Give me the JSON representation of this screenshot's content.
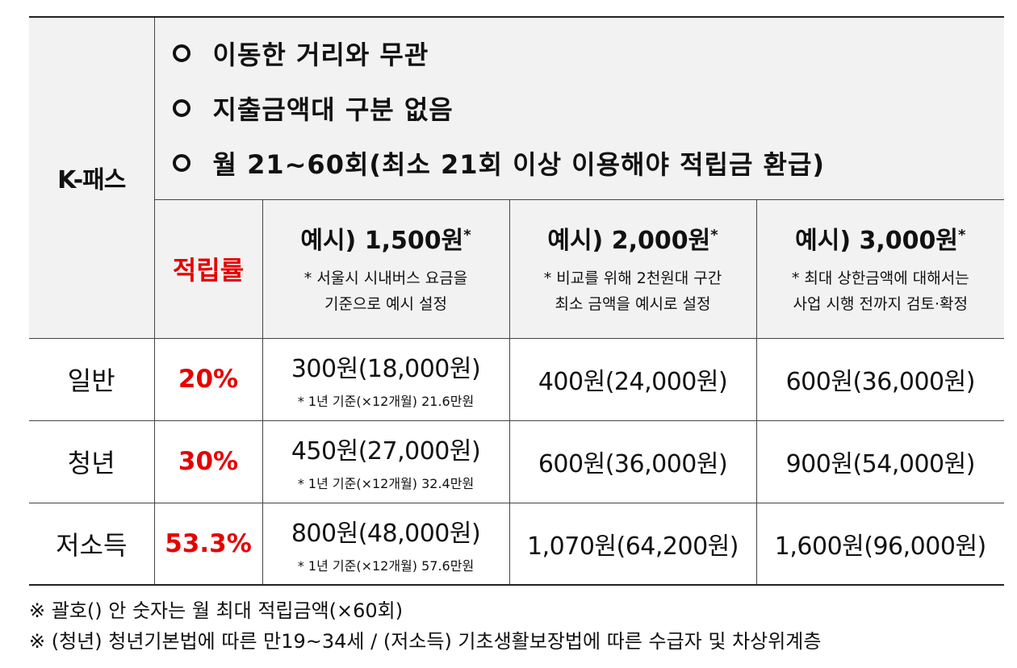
{
  "table": {
    "kpass_label": "K-패스",
    "features": [
      "이동한 거리와 무관",
      "지출금액대 구분 없음",
      "월 21~60회(최소 21회 이상 이용해야 적립금 환급)"
    ],
    "rate_header": "적립률",
    "examples": [
      {
        "title": "예시) 1,500원",
        "mark": "*",
        "note_line1": "* 서울시 시내버스 요금을",
        "note_line2": "기준으로 예시 설정"
      },
      {
        "title": "예시) 2,000원",
        "mark": "*",
        "note_line1": "* 비교를 위해 2천원대 구간",
        "note_line2": "최소 금액을 예시로 설정"
      },
      {
        "title": "예시) 3,000원",
        "mark": "*",
        "note_line1": "* 최대 상한금액에 대해서는",
        "note_line2": "사업 시행 전까지 검토·확정"
      }
    ],
    "rows": [
      {
        "category": "일반",
        "rate": "20%",
        "col1": "300원(18,000원)",
        "col1_note": "* 1년 기준(×12개월) 21.6만원",
        "col2": "400원(24,000원)",
        "col3": "600원(36,000원)"
      },
      {
        "category": "청년",
        "rate": "30%",
        "col1": "450원(27,000원)",
        "col1_note": "* 1년 기준(×12개월) 32.4만원",
        "col2": "600원(36,000원)",
        "col3": "900원(54,000원)"
      },
      {
        "category": "저소득",
        "rate": "53.3%",
        "col1": "800원(48,000원)",
        "col1_note": "* 1년 기준(×12개월) 57.6만원",
        "col2": "1,070원(64,200원)",
        "col3": "1,600원(96,000원)"
      }
    ]
  },
  "footnotes": [
    "※ 괄호() 안 숫자는 월 최대 적립금액(×60회)",
    "※ (청년) 청년기본법에 따른 만19~34세 / (저소득) 기초생활보장법에 따른 수급자 및 차상위계층"
  ],
  "colors": {
    "accent_red": "#e60000",
    "header_shade": "#f2f2f2",
    "border": "#444444"
  }
}
